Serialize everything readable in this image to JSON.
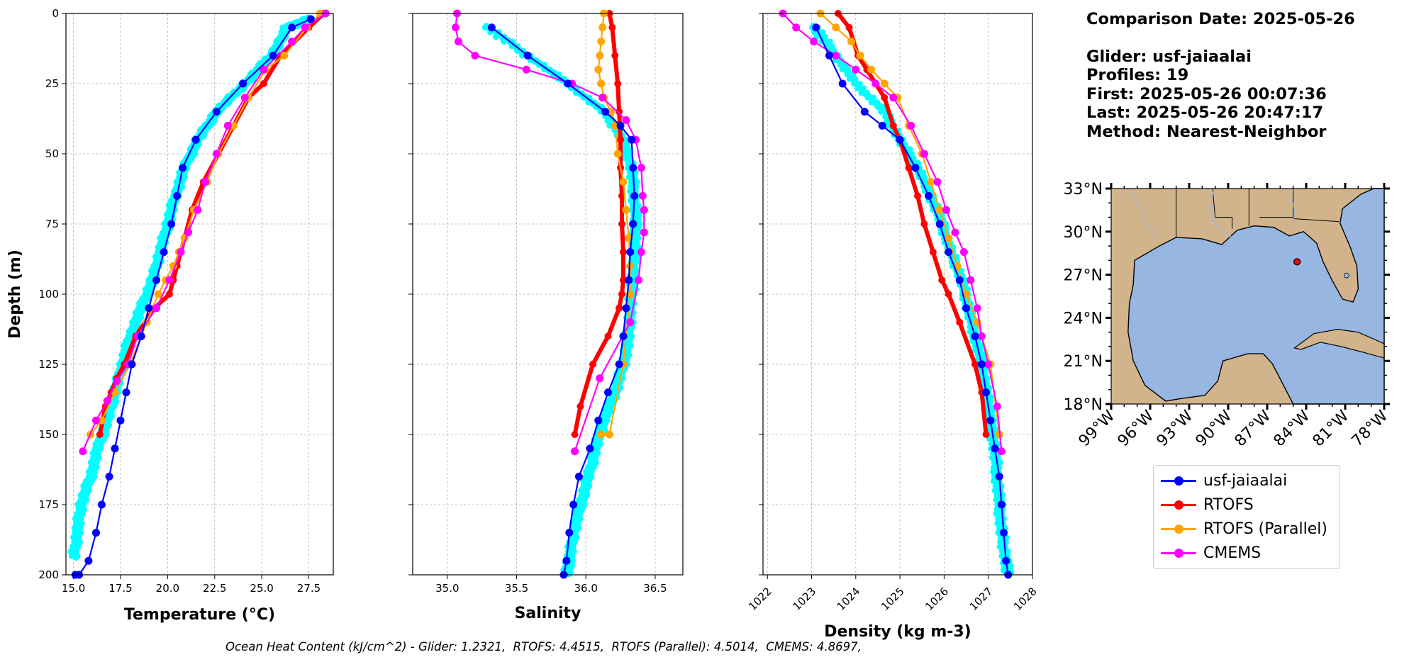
{
  "chart_data": [
    {
      "type": "scatter-line",
      "xlabel": "Temperature (°C)",
      "ylabel": "Depth (m)",
      "xlim": [
        14.6,
        28.8
      ],
      "ylim": [
        200,
        0
      ],
      "xticks": [
        "15.0",
        "17.5",
        "20.0",
        "22.5",
        "25.0",
        "27.5"
      ],
      "yticks": [
        "0",
        "25",
        "50",
        "75",
        "100",
        "125",
        "150",
        "175",
        "200"
      ],
      "grid": true,
      "series": [
        {
          "name": "usf-jaiaalai",
          "color": "#0000ff",
          "x": [
            27.6,
            26.6,
            25.6,
            24.0,
            22.6,
            21.5,
            20.8,
            20.5,
            20.2,
            19.8,
            19.4,
            19.0,
            18.6,
            18.1,
            17.8,
            17.5,
            17.2,
            16.9,
            16.5,
            16.2,
            15.8,
            15.3,
            15.1
          ],
          "y": [
            2,
            5,
            15,
            25,
            35,
            45,
            55,
            65,
            75,
            85,
            95,
            105,
            115,
            125,
            135,
            145,
            155,
            165,
            175,
            185,
            195,
            200,
            200
          ],
          "profile_x": [
            27.6,
            26.4,
            25.5,
            24.1,
            22.6,
            21.6,
            20.9,
            20.4,
            20.0,
            19.6,
            19.2,
            18.6,
            18.0,
            17.6,
            17.2,
            16.8,
            16.3,
            15.9,
            15.4,
            15.2,
            15.0
          ],
          "profile_y": [
            2,
            5,
            15,
            25,
            35,
            45,
            55,
            65,
            75,
            85,
            95,
            105,
            115,
            125,
            135,
            145,
            155,
            165,
            175,
            185,
            195
          ]
        },
        {
          "name": "RTOFS",
          "color": "#ff0000",
          "x": [
            28.3,
            27.5,
            26.0,
            25.1,
            24.3,
            23.5,
            22.7,
            21.9,
            21.3,
            20.9,
            20.5,
            20.3,
            20.1,
            19.3,
            18.3,
            17.7,
            17.3,
            17.0,
            16.7,
            16.4
          ],
          "y": [
            0,
            5,
            15,
            25,
            30,
            40,
            50,
            60,
            70,
            80,
            90,
            95,
            100,
            105,
            115,
            125,
            130,
            135,
            140,
            150
          ]
        },
        {
          "name": "RTOFS (Parallel)",
          "color": "#ffa500",
          "x": [
            28.1,
            27.4,
            26.2,
            25.2,
            24.3,
            23.5,
            22.7,
            22.1,
            21.4,
            20.9,
            20.6,
            20.3,
            19.9,
            19.5,
            18.9,
            18.0,
            17.2,
            16.5,
            15.9
          ],
          "y": [
            0,
            5,
            15,
            20,
            30,
            40,
            50,
            60,
            70,
            80,
            85,
            90,
            95,
            100,
            110,
            125,
            135,
            145,
            150
          ]
        },
        {
          "name": "CMEMS",
          "color": "#ff00ff",
          "x": [
            28.4,
            27.3,
            26.6,
            25.1,
            24.1,
            23.2,
            22.6,
            22.0,
            21.6,
            21.1,
            20.7,
            20.1,
            19.4,
            18.4,
            17.9,
            17.3,
            16.8,
            16.2,
            15.5
          ],
          "y": [
            0,
            5,
            10,
            20,
            30,
            40,
            50,
            60,
            70,
            78,
            85,
            95,
            105,
            115,
            125,
            131,
            138,
            145,
            156
          ]
        }
      ]
    },
    {
      "type": "scatter-line",
      "xlabel": "Salinity",
      "ylabel": "",
      "xlim": [
        34.75,
        36.7
      ],
      "ylim": [
        200,
        0
      ],
      "xticks": [
        "35.0",
        "35.5",
        "36.0",
        "36.5"
      ],
      "yticks": [],
      "grid": true,
      "series": [
        {
          "name": "usf-jaiaalai",
          "color": "#0000ff",
          "x": [
            35.32,
            35.58,
            35.87,
            36.14,
            36.25,
            36.33,
            36.34,
            36.35,
            36.34,
            36.32,
            36.31,
            36.29,
            36.27,
            36.24,
            36.16,
            36.09,
            36.03,
            35.95,
            35.91,
            35.88,
            35.86,
            35.84
          ],
          "y": [
            5,
            15,
            25,
            35,
            40,
            45,
            55,
            65,
            75,
            85,
            95,
            105,
            115,
            125,
            135,
            145,
            155,
            165,
            175,
            185,
            195,
            200
          ],
          "profile_x": [
            35.3,
            35.58,
            35.87,
            36.13,
            36.27,
            36.33,
            36.35,
            36.36,
            36.35,
            36.34,
            36.32,
            36.31,
            36.27,
            36.21,
            36.13,
            36.07,
            36.02,
            35.96,
            35.91,
            35.88,
            35.86
          ],
          "profile_y": [
            5,
            15,
            25,
            35,
            45,
            55,
            65,
            75,
            85,
            95,
            105,
            115,
            125,
            135,
            145,
            155,
            165,
            175,
            185,
            195,
            200
          ]
        },
        {
          "name": "RTOFS",
          "color": "#ff0000",
          "x": [
            36.17,
            36.19,
            36.21,
            36.23,
            36.24,
            36.25,
            36.25,
            36.26,
            36.26,
            36.27,
            36.27,
            36.26,
            36.24,
            36.16,
            36.05,
            35.96,
            35.92
          ],
          "y": [
            0,
            5,
            15,
            25,
            35,
            45,
            55,
            65,
            75,
            85,
            95,
            100,
            105,
            115,
            125,
            140,
            150
          ]
        },
        {
          "name": "RTOFS (Parallel)",
          "color": "#ffa500",
          "x": [
            36.13,
            36.12,
            36.11,
            36.1,
            36.09,
            36.11,
            36.13,
            36.18,
            36.21,
            36.23,
            36.27,
            36.29,
            36.31,
            36.32,
            36.32,
            36.27,
            36.17,
            36.11
          ],
          "y": [
            0,
            5,
            10,
            15,
            20,
            25,
            30,
            35,
            40,
            50,
            60,
            70,
            80,
            90,
            100,
            125,
            150,
            150
          ]
        },
        {
          "name": "CMEMS",
          "color": "#ff00ff",
          "x": [
            35.07,
            35.06,
            35.08,
            35.2,
            35.57,
            35.9,
            36.12,
            36.29,
            36.36,
            36.4,
            36.41,
            36.42,
            36.42,
            36.4,
            36.38,
            36.32,
            36.1,
            35.92
          ],
          "y": [
            0,
            5,
            10,
            15,
            20,
            25,
            30,
            38,
            45,
            55,
            65,
            70,
            78,
            85,
            95,
            110,
            130,
            156
          ]
        }
      ]
    },
    {
      "type": "scatter-line",
      "xlabel": "Density (kg m-3)",
      "ylabel": "",
      "xlim": [
        1021.9,
        1028.0
      ],
      "ylim": [
        200,
        0
      ],
      "xticks": [
        "1022",
        "1023",
        "1024",
        "1025",
        "1026",
        "1027",
        "1028"
      ],
      "yticks": [],
      "grid": true,
      "series": [
        {
          "name": "usf-jaiaalai",
          "color": "#0000ff",
          "x": [
            1023.1,
            1023.4,
            1023.7,
            1024.2,
            1024.6,
            1025.0,
            1025.35,
            1025.65,
            1025.9,
            1026.1,
            1026.35,
            1026.5,
            1026.7,
            1026.85,
            1026.95,
            1027.05,
            1027.15,
            1027.25,
            1027.3,
            1027.35,
            1027.4,
            1027.45
          ],
          "y": [
            5,
            15,
            25,
            35,
            40,
            45,
            55,
            65,
            75,
            85,
            95,
            105,
            115,
            125,
            135,
            145,
            155,
            165,
            175,
            185,
            195,
            200
          ],
          "profile_x": [
            1023.1,
            1023.55,
            1024.0,
            1024.65,
            1025.0,
            1025.4,
            1025.7,
            1025.95,
            1026.15,
            1026.4,
            1026.55,
            1026.7,
            1026.85,
            1026.95,
            1027.05,
            1027.15,
            1027.2,
            1027.25,
            1027.3,
            1027.4,
            1027.45
          ],
          "profile_y": [
            5,
            15,
            25,
            35,
            45,
            55,
            65,
            75,
            85,
            95,
            105,
            115,
            125,
            135,
            145,
            155,
            165,
            175,
            185,
            195,
            200
          ]
        },
        {
          "name": "RTOFS",
          "color": "#ff0000",
          "x": [
            1023.6,
            1023.85,
            1024.05,
            1024.25,
            1024.45,
            1024.65,
            1024.85,
            1025.0,
            1025.2,
            1025.4,
            1025.55,
            1025.75,
            1025.95,
            1026.1,
            1026.35,
            1026.7,
            1026.85,
            1026.95
          ],
          "y": [
            0,
            5,
            15,
            20,
            25,
            30,
            40,
            45,
            55,
            65,
            75,
            85,
            95,
            100,
            110,
            125,
            135,
            150
          ]
        },
        {
          "name": "RTOFS (Parallel)",
          "color": "#ffa500",
          "x": [
            1023.2,
            1023.55,
            1023.9,
            1024.1,
            1024.35,
            1024.65,
            1024.95,
            1025.2,
            1025.5,
            1025.7,
            1025.9,
            1026.1,
            1026.3,
            1026.5,
            1026.75,
            1027.05,
            1027.25
          ],
          "y": [
            0,
            5,
            10,
            15,
            20,
            25,
            30,
            40,
            50,
            60,
            70,
            80,
            90,
            100,
            110,
            125,
            150
          ]
        },
        {
          "name": "CMEMS",
          "color": "#ff00ff",
          "x": [
            1022.35,
            1022.65,
            1023.05,
            1023.55,
            1024.0,
            1024.45,
            1024.85,
            1025.25,
            1025.55,
            1025.85,
            1026.05,
            1026.25,
            1026.45,
            1026.6,
            1026.75,
            1026.85,
            1027.0,
            1027.2,
            1027.3
          ],
          "y": [
            0,
            5,
            10,
            15,
            20,
            25,
            30,
            40,
            50,
            60,
            70,
            78,
            85,
            95,
            105,
            115,
            125,
            140,
            156
          ]
        }
      ]
    },
    {
      "type": "map",
      "xlim": [
        -99,
        -78
      ],
      "ylim": [
        18,
        33
      ],
      "xticks": [
        "99°W",
        "96°W",
        "93°W",
        "90°W",
        "87°W",
        "84°W",
        "81°W",
        "78°W"
      ],
      "yticks": [
        "33°N",
        "30°N",
        "27°N",
        "24°N",
        "21°N",
        "18°N"
      ],
      "marker": {
        "lon": -84.7,
        "lat": 27.9,
        "color": "#ff0000"
      },
      "colors": {
        "ocean": "#97b6e1",
        "land": "#d2b48c"
      }
    }
  ],
  "info": {
    "comparison_date": "Comparison Date: 2025-05-26",
    "glider": "Glider: usf-jaiaalai",
    "profiles": "Profiles: 19",
    "first": "First: 2025-05-26 00:07:36",
    "last": "Last: 2025-05-26 20:47:17",
    "method": "Method: Nearest-Neighbor"
  },
  "legend": [
    {
      "label": "usf-jaiaalai",
      "color": "#0000ff"
    },
    {
      "label": "RTOFS",
      "color": "#ff0000"
    },
    {
      "label": "RTOFS (Parallel)",
      "color": "#ffa500"
    },
    {
      "label": "CMEMS",
      "color": "#ff00ff"
    }
  ],
  "footer": "Ocean Heat Content (kJ/cm^2) - Glider: 1.2321,  RTOFS: 4.4515,  RTOFS (Parallel): 4.5014,  CMEMS: 4.8697,"
}
